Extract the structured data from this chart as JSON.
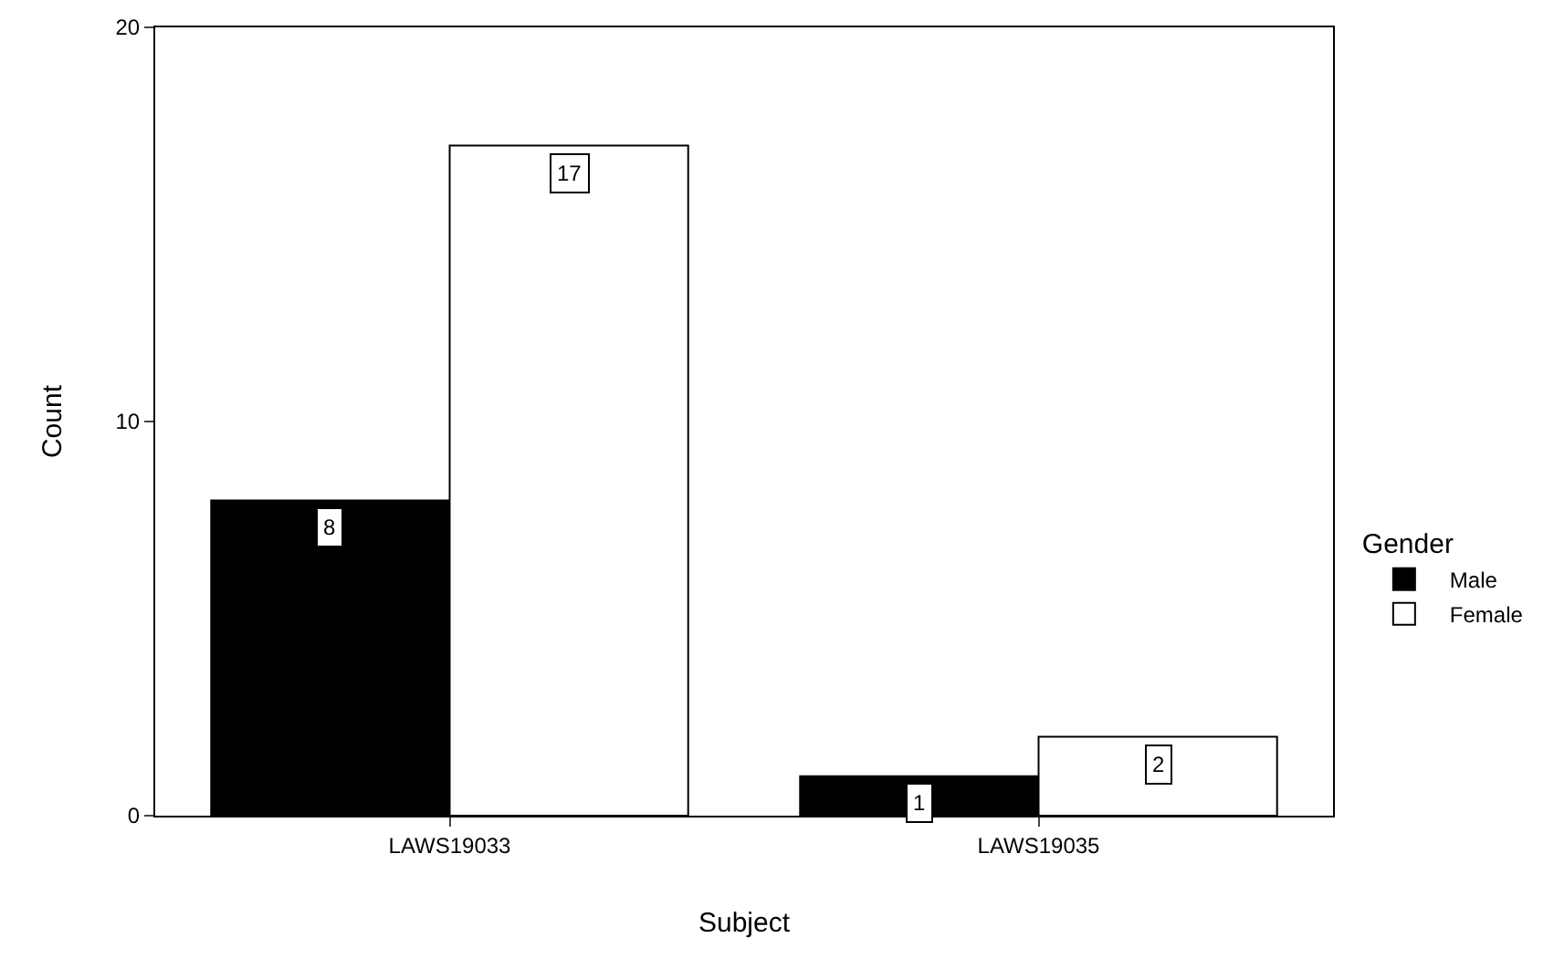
{
  "chart_data": {
    "type": "bar",
    "xlabel": "Subject",
    "ylabel": "Count",
    "legend_title": "Gender",
    "categories": [
      "LAWS19033",
      "LAWS19035"
    ],
    "series": [
      {
        "name": "Male",
        "color": "#000000",
        "values": [
          8,
          1
        ]
      },
      {
        "name": "Female",
        "color": "#ffffff",
        "values": [
          17,
          2
        ]
      }
    ],
    "ylim": [
      0,
      20
    ],
    "yticks": [
      0,
      10,
      20
    ],
    "grid": false,
    "legend": "right",
    "data_labels": true
  }
}
